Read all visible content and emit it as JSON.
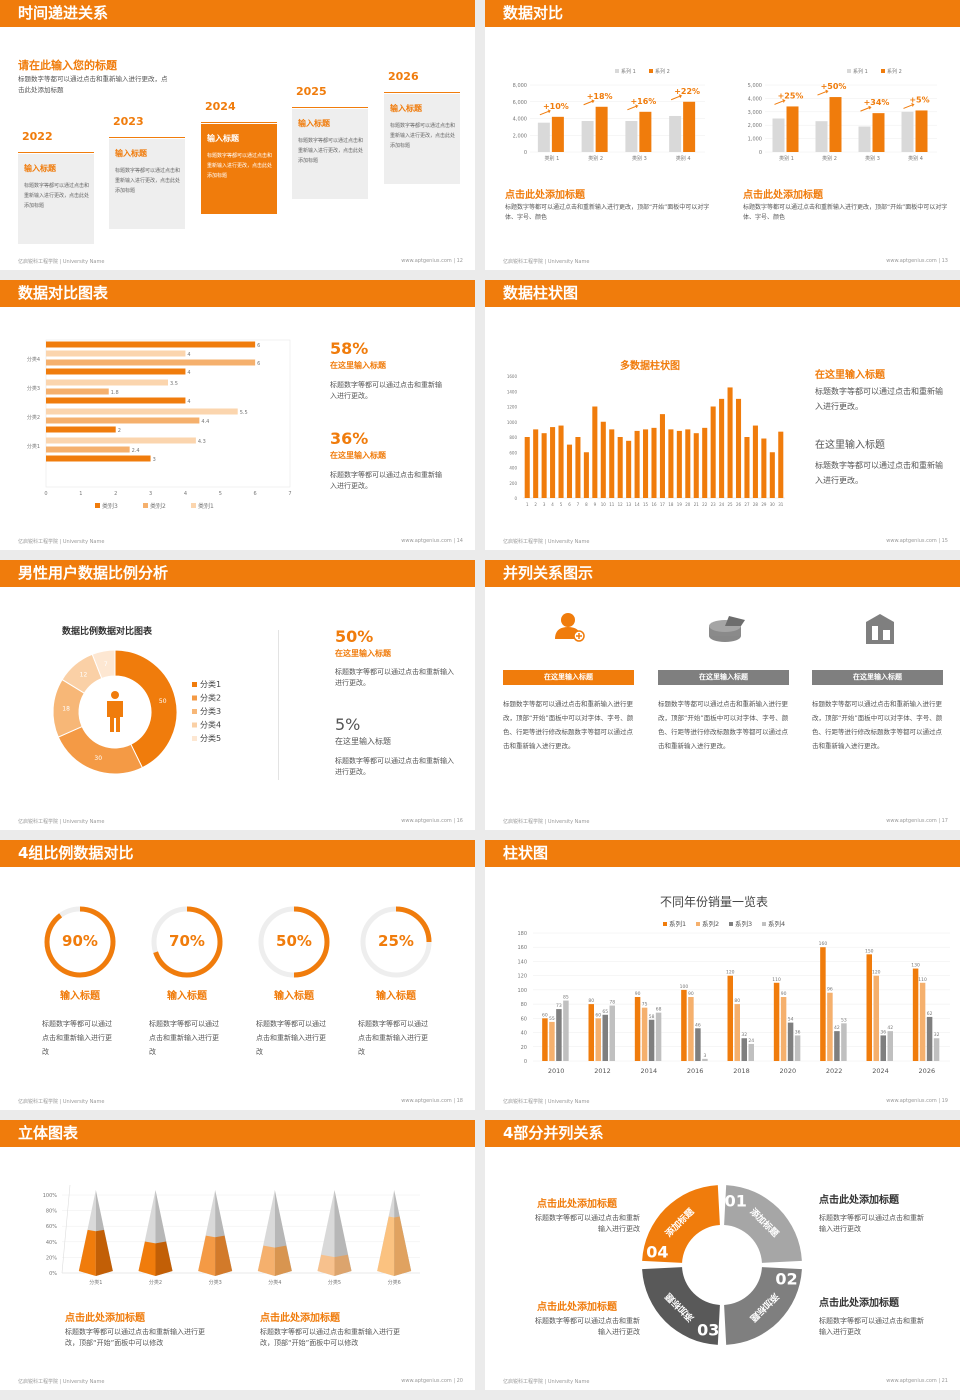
{
  "brand": "亿启锐科工程学院 | University Name",
  "site": "www.aptgenius.com",
  "colors": {
    "orange": "#f07c0c",
    "light": "#f5b06d",
    "pale": "#fbd5ae",
    "gray": "#d9d9d9",
    "dark": "#7f7f7f"
  },
  "s12": {
    "title": "时间递进关系",
    "page": "12",
    "intro_title": "请在此输入您的标题",
    "intro_text": "标题数字等都可以通过点击和重新输入进行更改，点击此处添加标题",
    "steps": [
      {
        "year": "2022",
        "head": "输入标题",
        "text": "标题数字等都可以通过点击和重新输入进行更改，点击此处添加标题"
      },
      {
        "year": "2023",
        "head": "输入标题",
        "text": "标题数字等都可以通过点击和重新输入进行更改，点击此处添加标题"
      },
      {
        "year": "2024",
        "head": "输入标题",
        "text": "标题数字等都可以通过点击和重新输入进行更改，点击此处添加标题"
      },
      {
        "year": "2025",
        "head": "输入标题",
        "text": "标题数字等都可以通过点击和重新输入进行更改，点击此处添加标题"
      },
      {
        "year": "2026",
        "head": "输入标题",
        "text": "标题数字等都可以通过点击和重新输入进行更改，点击此处添加标题"
      }
    ]
  },
  "s13": {
    "title": "数据对比",
    "page": "13",
    "legend": [
      "系列 1",
      "系列 2"
    ],
    "heads": [
      "点击此处添加标题",
      "点击此处添加标题"
    ],
    "texts": [
      "标题数字等都可以通过点击和重新输入进行更改，顶部“开始”面板中可以对字体、字号、颜色",
      "标题数字等都可以通过点击和重新输入进行更改，顶部“开始”面板中可以对字体、字号、颜色"
    ]
  },
  "s14": {
    "title": "数据对比图表",
    "page": "14",
    "pct1": "58%",
    "pct2": "36%",
    "head": "在这里输入标题",
    "text": "标题数字等都可以通过点击和重新输入进行更改。"
  },
  "s15": {
    "title": "数据柱状图",
    "page": "15",
    "chart_title": "多数据柱状图",
    "head": "在这里输入标题",
    "text": "标题数字等都可以通过点击和重新输入进行更改。"
  },
  "s16": {
    "title": "男性用户数据比例分析",
    "page": "16",
    "chart_title": "数据比例数据对比图表",
    "pct1": "50%",
    "pct2": "5%",
    "head": "在这里输入标题",
    "text": "标题数字等都可以通过点击和重新输入进行更改。"
  },
  "s17": {
    "title": "并列关系图示",
    "page": "17",
    "cols": [
      {
        "label": "在这里输入标题",
        "text": "标题数字等都可以通过点击和重新输入进行更改，顶部“开始”面板中可以对字体、字号、颜色、行距等进行修改标题数字等都可以通过点击和重新输入进行更改。"
      },
      {
        "label": "在这里输入标题",
        "text": "标题数字等都可以通过点击和重新输入进行更改，顶部“开始”面板中可以对字体、字号、颜色、行距等进行修改标题数字等都可以通过点击和重新输入进行更改。"
      },
      {
        "label": "在这里输入标题",
        "text": "标题数字等都可以通过点击和重新输入进行更改，顶部“开始”面板中可以对字体、字号、颜色、行距等进行修改标题数字等都可以通过点击和重新输入进行更改。"
      }
    ]
  },
  "s18": {
    "title": "4组比例数据对比",
    "page": "18",
    "items": [
      {
        "pct": "90%",
        "head": "输入标题",
        "text": "标题数字等都可以通过点击和重新输入进行更改"
      },
      {
        "pct": "70%",
        "head": "输入标题",
        "text": "标题数字等都可以通过点击和重新输入进行更改"
      },
      {
        "pct": "50%",
        "head": "输入标题",
        "text": "标题数字等都可以通过点击和重新输入进行更改"
      },
      {
        "pct": "25%",
        "head": "输入标题",
        "text": "标题数字等都可以通过点击和重新输入进行更改"
      }
    ]
  },
  "s19": {
    "title": "柱状图",
    "page": "19",
    "chart_title": "不同年份销量一览表"
  },
  "s20": {
    "title": "立体图表",
    "page": "20",
    "heads": [
      "点击此处添加标题",
      "点击此处添加标题"
    ],
    "texts": [
      "标题数字等都可以通过点击和重新输入进行更改，顶部“开始”面板中可以修改",
      "标题数字等都可以通过点击和重新输入进行更改，顶部“开始”面板中可以修改"
    ]
  },
  "s21": {
    "title": "4部分并列关系",
    "page": "21",
    "head": "点击此处添加标题",
    "text": "标题数字等都可以通过点击和重新输入进行更改",
    "seg_label": "添加标题",
    "nums": [
      "01",
      "02",
      "03",
      "04"
    ]
  },
  "chart_data": [
    {
      "type": "bar",
      "categories": [
        "类别 1",
        "类别 2",
        "类别 3",
        "类别 4"
      ],
      "series": [
        {
          "name": "系列 1",
          "values": [
            3500,
            3700,
            3700,
            4300
          ]
        },
        {
          "name": "系列 2",
          "values": [
            4200,
            5400,
            4800,
            6000
          ]
        }
      ],
      "annotations": [
        "+10%",
        "+18%",
        "+16%",
        "+22%"
      ],
      "ylim": [
        0,
        8000
      ],
      "yticks": [
        "0",
        "2,000",
        "4,000",
        "6,000",
        "8,000"
      ]
    },
    {
      "type": "bar",
      "categories": [
        "类别 1",
        "类别 2",
        "类别 3",
        "类别 4"
      ],
      "series": [
        {
          "name": "系列 1",
          "values": [
            2500,
            2300,
            1900,
            3000
          ]
        },
        {
          "name": "系列 2",
          "values": [
            3400,
            4100,
            2900,
            3100
          ]
        }
      ],
      "annotations": [
        "+25%",
        "+50%",
        "+34%",
        "+5%"
      ],
      "ylim": [
        0,
        5000
      ],
      "yticks": [
        "0",
        "1,000",
        "2,000",
        "3,000",
        "4,000",
        "5,000"
      ]
    },
    {
      "type": "bar",
      "orientation": "horizontal",
      "categories": [
        "分类1",
        "分类2",
        "分类3",
        "分类4"
      ],
      "series": [
        {
          "name": "类别3",
          "values": [
            3,
            2,
            4,
            4
          ]
        },
        {
          "name": "类别2",
          "values": [
            2.4,
            4.4,
            1.8,
            6
          ]
        },
        {
          "name": "类别1",
          "values": [
            4.3,
            5.5,
            3.5,
            4
          ]
        },
        {
          "name": "extra",
          "values": [
            0,
            0,
            0,
            6
          ]
        }
      ],
      "xlim": [
        0,
        7
      ],
      "xticks": [
        "0",
        "1",
        "2",
        "3",
        "4",
        "5",
        "6",
        "7"
      ],
      "legend": [
        "类别3",
        "类别2",
        "类别1"
      ]
    },
    {
      "type": "bar",
      "categories": [
        "1",
        "2",
        "3",
        "4",
        "5",
        "6",
        "7",
        "8",
        "9",
        "10",
        "11",
        "12",
        "13",
        "14",
        "15",
        "16",
        "17",
        "18",
        "19",
        "20",
        "21",
        "22",
        "23",
        "24",
        "25",
        "26",
        "27",
        "28",
        "29",
        "30",
        "31"
      ],
      "values": [
        800,
        900,
        850,
        930,
        950,
        700,
        800,
        600,
        1200,
        1000,
        900,
        800,
        750,
        880,
        900,
        920,
        1100,
        900,
        880,
        900,
        850,
        920,
        1200,
        1300,
        1450,
        1300,
        800,
        950,
        780,
        600,
        870
      ],
      "ylim": [
        0,
        1600
      ],
      "yticks": [
        "0",
        "200",
        "400",
        "600",
        "800",
        "1000",
        "1200",
        "1400",
        "1600"
      ]
    },
    {
      "type": "pie",
      "donut": true,
      "labels": [
        "分类1",
        "分类2",
        "分类3",
        "分类4",
        "分类5"
      ],
      "values": [
        50,
        30,
        18,
        12,
        7
      ],
      "title": "数据比例数据对比图表"
    },
    {
      "type": "bar",
      "title": "不同年份销量一览表",
      "categories": [
        "2010",
        "2012",
        "2014",
        "2016",
        "2018",
        "2020",
        "2022",
        "2024",
        "2026"
      ],
      "series": [
        {
          "name": "系列1",
          "values": [
            60,
            80,
            90,
            100,
            120,
            110,
            160,
            150,
            130
          ]
        },
        {
          "name": "系列2",
          "values": [
            55,
            60,
            75,
            90,
            80,
            90,
            96,
            120,
            110
          ]
        },
        {
          "name": "系列3",
          "values": [
            73,
            65,
            58,
            46,
            32,
            54,
            42,
            36,
            62
          ]
        },
        {
          "name": "系列4",
          "values": [
            85,
            78,
            68,
            3,
            24,
            36,
            53,
            42,
            32
          ]
        }
      ],
      "ylim": [
        0,
        180
      ],
      "yticks": [
        "0",
        "20",
        "40",
        "60",
        "80",
        "100",
        "120",
        "140",
        "160",
        "180"
      ]
    },
    {
      "type": "bar",
      "style": "3d-pyramid",
      "categories": [
        "分类1",
        "分类2",
        "分类3",
        "分类4",
        "分类5",
        "分类6"
      ],
      "values": [
        52,
        38,
        45,
        33,
        22,
        68
      ],
      "ylim": [
        0,
        100
      ],
      "yticks": [
        "0%",
        "20%",
        "40%",
        "60%",
        "80%",
        "100%"
      ]
    }
  ]
}
